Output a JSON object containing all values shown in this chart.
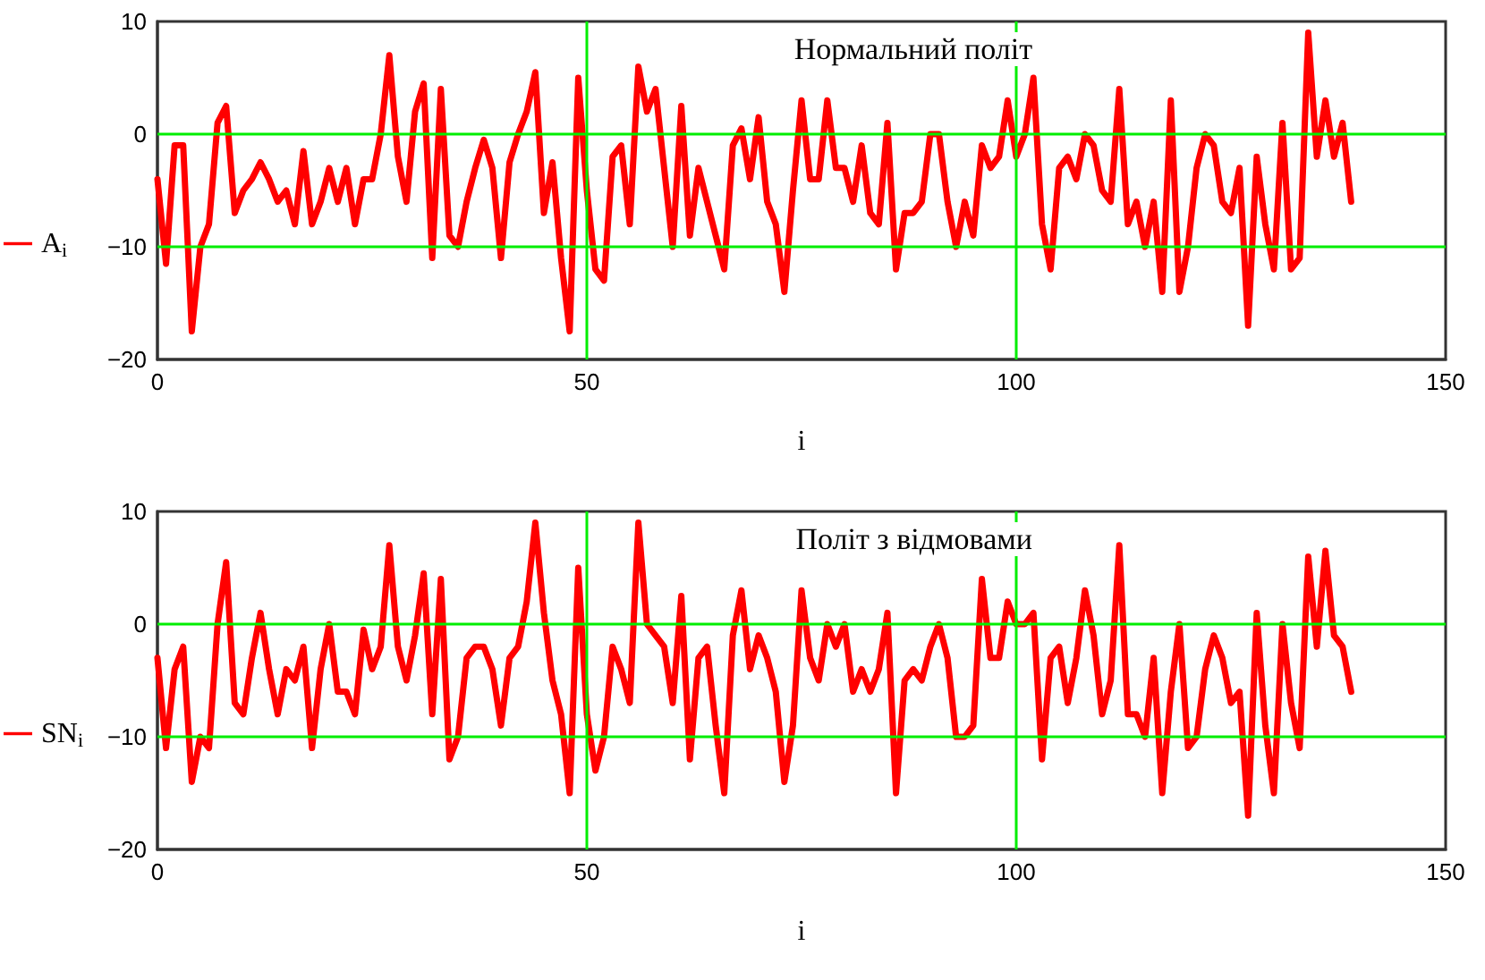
{
  "chart_data": [
    {
      "type": "line",
      "title": "Нормальний політ",
      "xlabel": "i",
      "legend": "left",
      "grid": true,
      "xlim": [
        0,
        150
      ],
      "xticks": [
        0,
        50,
        100,
        150
      ],
      "ylim": [
        -20,
        10
      ],
      "yticks": [
        -20,
        -10,
        0,
        10
      ],
      "x": [
        0,
        1,
        2,
        3,
        4,
        5,
        6,
        7,
        8,
        9,
        10,
        11,
        12,
        13,
        14,
        15,
        16,
        17,
        18,
        19,
        20,
        21,
        22,
        23,
        24,
        25,
        26,
        27,
        28,
        29,
        30,
        31,
        32,
        33,
        34,
        35,
        36,
        37,
        38,
        39,
        40,
        41,
        42,
        43,
        44,
        45,
        46,
        47,
        48,
        49,
        50,
        51,
        52,
        53,
        54,
        55,
        56,
        57,
        58,
        59,
        60,
        61,
        62,
        63,
        64,
        65,
        66,
        67,
        68,
        69,
        70,
        71,
        72,
        73,
        74,
        75,
        76,
        77,
        78,
        79,
        80,
        81,
        82,
        83,
        84,
        85,
        86,
        87,
        88,
        89,
        90,
        91,
        92,
        93,
        94,
        95,
        96,
        97,
        98,
        99,
        100,
        101,
        102,
        103,
        104,
        105,
        106,
        107,
        108,
        109,
        110,
        111,
        112,
        113,
        114,
        115,
        116,
        117,
        118,
        119,
        120,
        121,
        122,
        123,
        124,
        125,
        126,
        127,
        128,
        129,
        130,
        131,
        132,
        133,
        134,
        135,
        136,
        137,
        138,
        139
      ],
      "series": [
        {
          "name": "A$_{i}$",
          "color": "#ff0000",
          "values": [
            -4,
            -11.5,
            -1,
            -1,
            -17.5,
            -10,
            -8,
            1,
            2.5,
            -7,
            -5,
            -4,
            -2.5,
            -4,
            -6,
            -5,
            -8,
            -1.5,
            -8,
            -6,
            -3,
            -6,
            -3,
            -8,
            -4,
            -4,
            0,
            7,
            -2,
            -6,
            2,
            4.5,
            -11,
            4,
            -9,
            -10,
            -6,
            -3,
            -0.5,
            -3,
            -11,
            -2.5,
            0,
            2,
            5.5,
            -7,
            -2.5,
            -11,
            -17.5,
            5,
            -5,
            -12,
            -13,
            -2,
            -1,
            -8,
            6,
            2,
            4,
            -3,
            -10,
            2.5,
            -9,
            -3,
            -6,
            -9,
            -12,
            -1,
            0.5,
            -4,
            1.5,
            -6,
            -8,
            -14,
            -5,
            3,
            -4,
            -4,
            3,
            -3,
            -3,
            -6,
            -1,
            -7,
            -8,
            1,
            -12,
            -7,
            -7,
            -6,
            0,
            0,
            -6,
            -10,
            -6,
            -9,
            -1,
            -3,
            -2,
            3,
            -2,
            0,
            5,
            -8,
            -12,
            -3,
            -2,
            -4,
            0,
            -1,
            -5,
            -6,
            4,
            -8,
            -6,
            -10,
            -6,
            -14,
            3,
            -14,
            -10,
            -3,
            0,
            -1,
            -6,
            -7,
            -3,
            -17,
            -2,
            -8,
            -12,
            1,
            -12,
            -11,
            9,
            -2,
            3,
            -2,
            1,
            -6
          ]
        }
      ]
    },
    {
      "type": "line",
      "title": "Політ з відмовами",
      "xlabel": "i",
      "legend": "left",
      "grid": true,
      "xlim": [
        0,
        150
      ],
      "xticks": [
        0,
        50,
        100,
        150
      ],
      "ylim": [
        -20,
        10
      ],
      "yticks": [
        -20,
        -10,
        0,
        10
      ],
      "x": [
        0,
        1,
        2,
        3,
        4,
        5,
        6,
        7,
        8,
        9,
        10,
        11,
        12,
        13,
        14,
        15,
        16,
        17,
        18,
        19,
        20,
        21,
        22,
        23,
        24,
        25,
        26,
        27,
        28,
        29,
        30,
        31,
        32,
        33,
        34,
        35,
        36,
        37,
        38,
        39,
        40,
        41,
        42,
        43,
        44,
        45,
        46,
        47,
        48,
        49,
        50,
        51,
        52,
        53,
        54,
        55,
        56,
        57,
        58,
        59,
        60,
        61,
        62,
        63,
        64,
        65,
        66,
        67,
        68,
        69,
        70,
        71,
        72,
        73,
        74,
        75,
        76,
        77,
        78,
        79,
        80,
        81,
        82,
        83,
        84,
        85,
        86,
        87,
        88,
        89,
        90,
        91,
        92,
        93,
        94,
        95,
        96,
        97,
        98,
        99,
        100,
        101,
        102,
        103,
        104,
        105,
        106,
        107,
        108,
        109,
        110,
        111,
        112,
        113,
        114,
        115,
        116,
        117,
        118,
        119,
        120,
        121,
        122,
        123,
        124,
        125,
        126,
        127,
        128,
        129,
        130,
        131,
        132,
        133,
        134,
        135,
        136,
        137,
        138,
        139
      ],
      "series": [
        {
          "name": "SN$_{i}$",
          "color": "#ff0000",
          "values": [
            -3,
            -11,
            -4,
            -2,
            -14,
            -10,
            -11,
            0,
            5.5,
            -7,
            -8,
            -3,
            1,
            -4,
            -8,
            -4,
            -5,
            -2,
            -11,
            -4,
            0,
            -6,
            -6,
            -8,
            -0.5,
            -4,
            -2,
            7,
            -2,
            -5,
            -1,
            4.5,
            -8,
            4,
            -12,
            -10,
            -3,
            -2,
            -2,
            -4,
            -9,
            -3,
            -2,
            2,
            9,
            1,
            -5,
            -8,
            -15,
            5,
            -8,
            -13,
            -10,
            -2,
            -4,
            -7,
            9,
            0,
            -1,
            -2,
            -7,
            2.5,
            -12,
            -3,
            -2,
            -9,
            -15,
            -1,
            3,
            -4,
            -1,
            -3,
            -6,
            -14,
            -9,
            3,
            -3,
            -5,
            0,
            -2,
            0,
            -6,
            -4,
            -6,
            -4,
            1,
            -15,
            -5,
            -4,
            -5,
            -2,
            0,
            -3,
            -10,
            -10,
            -9,
            4,
            -3,
            -3,
            2,
            0,
            0,
            1,
            -12,
            -3,
            -2,
            -7,
            -3,
            3,
            -1,
            -8,
            -5,
            7,
            -8,
            -8,
            -10,
            -3,
            -15,
            -6,
            0,
            -11,
            -10,
            -4,
            -1,
            -3,
            -7,
            -6,
            -17,
            1,
            -9,
            -15,
            0,
            -7,
            -11,
            6,
            -2,
            6.5,
            -1,
            -2,
            -6
          ]
        }
      ]
    }
  ]
}
